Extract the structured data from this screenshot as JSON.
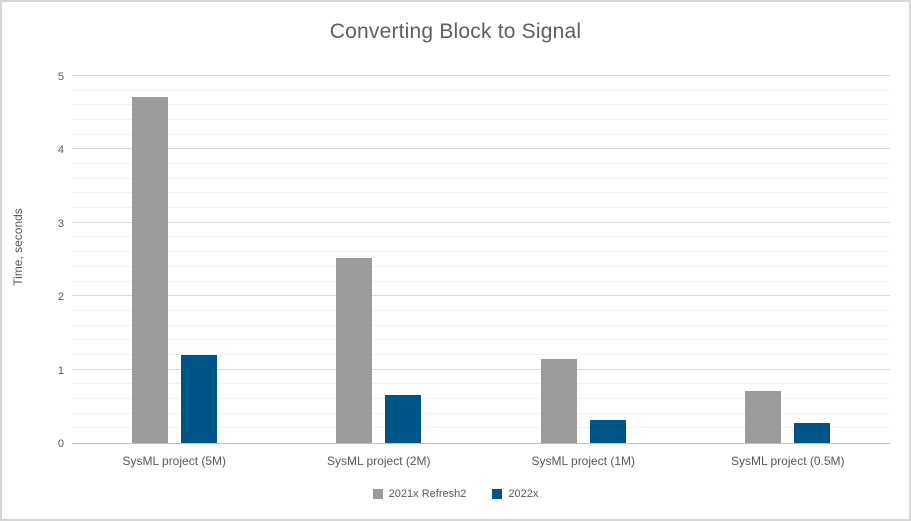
{
  "chart_data": {
    "type": "bar",
    "title": "Converting Block to Signal",
    "ylabel": "Time, seconds",
    "xlabel": "",
    "categories": [
      "SysML project (5M)",
      "SysML project (2M)",
      "SysML project (1M)",
      "SysML project (0.5M)"
    ],
    "series": [
      {
        "name": "2021x Refresh2",
        "color": "#9b9b9d",
        "values": [
          4.71,
          2.52,
          1.14,
          0.71
        ]
      },
      {
        "name": "2022x",
        "color": "#005588",
        "values": [
          1.2,
          0.65,
          0.31,
          0.27
        ]
      }
    ],
    "ylim": [
      0,
      5
    ],
    "yticks": [
      0,
      1,
      2,
      3,
      4,
      5
    ],
    "minor_tick_step": 0.2,
    "grid": true,
    "legend_position": "bottom"
  },
  "colors": {
    "major_gridline": "#d9d9d9",
    "minor_gridline": "#f2f2f2",
    "axis_line": "#bfbfbf",
    "text": "#595959",
    "title_text": "#5f5f5f",
    "frame_border": "#d6d6d6"
  }
}
